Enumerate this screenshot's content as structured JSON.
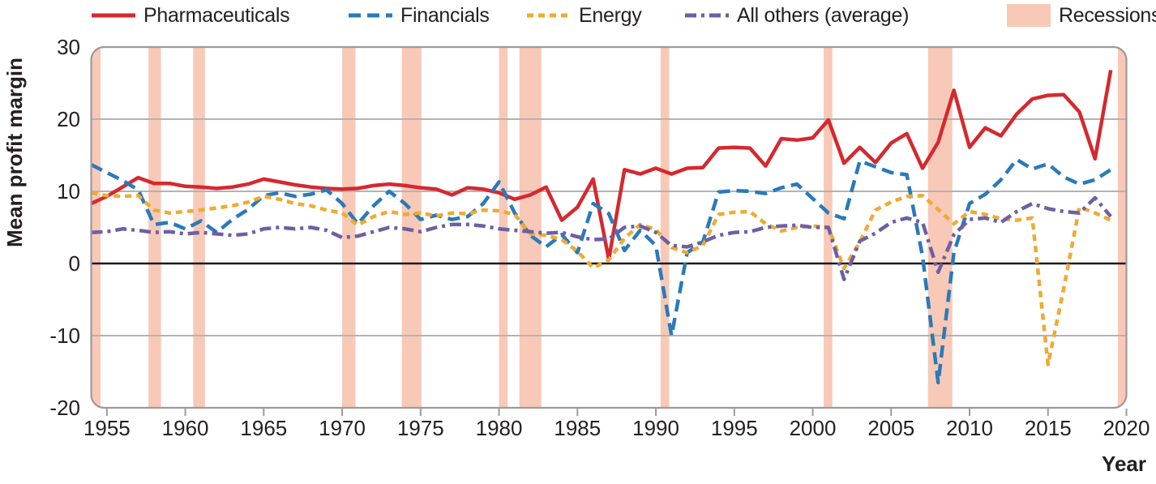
{
  "chart_data": {
    "type": "line",
    "title": "",
    "ylabel": "Mean profit margin",
    "xlabel": "Year",
    "x_range": [
      1954,
      2020
    ],
    "y_range": [
      -20,
      30
    ],
    "x_ticks": [
      1955,
      1960,
      1965,
      1970,
      1975,
      1980,
      1985,
      1990,
      1995,
      2000,
      2005,
      2010,
      2015,
      2020
    ],
    "y_ticks": [
      30,
      20,
      10,
      0,
      -10,
      -20
    ],
    "grid": "horizontal",
    "legend_position": "top",
    "years": [
      1954,
      1955,
      1956,
      1957,
      1958,
      1959,
      1960,
      1961,
      1962,
      1963,
      1964,
      1965,
      1966,
      1967,
      1968,
      1969,
      1970,
      1971,
      1972,
      1973,
      1974,
      1975,
      1976,
      1977,
      1978,
      1979,
      1980,
      1981,
      1982,
      1983,
      1984,
      1985,
      1986,
      1987,
      1988,
      1989,
      1990,
      1991,
      1992,
      1993,
      1994,
      1995,
      1996,
      1997,
      1998,
      1999,
      2000,
      2001,
      2002,
      2003,
      2004,
      2005,
      2006,
      2007,
      2008,
      2009,
      2010,
      2011,
      2012,
      2013,
      2014,
      2015,
      2016,
      2017,
      2018,
      2019
    ],
    "series": [
      {
        "name": "Pharmaceuticals",
        "color": "#d5292f",
        "style": "solid",
        "values": [
          8.3,
          9.3,
          10.6,
          11.9,
          11.1,
          11.1,
          10.7,
          10.6,
          10.4,
          10.6,
          11.0,
          11.7,
          11.3,
          10.9,
          10.6,
          10.4,
          10.3,
          10.4,
          10.8,
          11.0,
          10.8,
          10.5,
          10.3,
          9.5,
          10.5,
          10.3,
          9.8,
          8.9,
          9.5,
          10.6,
          6.0,
          7.8,
          11.7,
          0.6,
          13.0,
          12.4,
          13.2,
          12.4,
          13.2,
          13.3,
          16.0,
          16.1,
          16.0,
          13.5,
          17.3,
          17.1,
          17.4,
          19.9,
          13.9,
          16.1,
          14.0,
          16.7,
          18.0,
          13.2,
          16.8,
          24.0,
          16.1,
          18.8,
          17.7,
          20.7,
          22.8,
          23.3,
          23.4,
          21.0,
          14.5,
          26.8
        ]
      },
      {
        "name": "Financials",
        "color": "#2a7ab9",
        "style": "dashed",
        "values": [
          13.7,
          12.6,
          11.5,
          10.2,
          5.4,
          5.7,
          4.8,
          5.9,
          4.3,
          6.1,
          7.5,
          9.4,
          9.8,
          9.3,
          9.6,
          10.2,
          8.3,
          5.5,
          8.0,
          10.0,
          8.3,
          6.1,
          6.7,
          6.1,
          6.5,
          8.3,
          11.3,
          7.0,
          3.9,
          2.3,
          4.0,
          1.5,
          8.3,
          6.9,
          1.8,
          4.6,
          2.5,
          -10.0,
          1.5,
          3.0,
          9.9,
          10.1,
          10.0,
          9.7,
          10.5,
          11.0,
          9.0,
          7.0,
          6.2,
          14.2,
          13.4,
          12.6,
          12.3,
          1.0,
          -16.5,
          1.5,
          8.3,
          9.6,
          11.6,
          14.4,
          13.1,
          13.8,
          12.0,
          11.0,
          11.6,
          13.0
        ]
      },
      {
        "name": "Energy",
        "color": "#eeab33",
        "style": "short-dash",
        "values": [
          9.8,
          9.4,
          9.3,
          9.4,
          7.4,
          7.0,
          7.2,
          7.4,
          7.7,
          8.0,
          8.5,
          9.3,
          8.9,
          8.3,
          8.0,
          7.4,
          7.0,
          5.3,
          6.5,
          7.2,
          6.8,
          7.0,
          6.6,
          7.0,
          6.9,
          7.4,
          7.3,
          6.8,
          4.1,
          3.9,
          3.3,
          1.7,
          -0.6,
          0.5,
          3.5,
          5.4,
          4.7,
          2.2,
          1.5,
          2.5,
          6.8,
          7.1,
          7.2,
          5.5,
          4.5,
          5.0,
          5.2,
          5.0,
          -0.7,
          3.0,
          7.4,
          8.5,
          9.3,
          9.4,
          7.5,
          5.5,
          7.2,
          6.8,
          6.2,
          6.0,
          6.3,
          -14.0,
          -3.5,
          7.8,
          7.0,
          6.0
        ]
      },
      {
        "name": "All others (average)",
        "color": "#6e5fa5",
        "style": "dash-dot",
        "values": [
          4.3,
          4.4,
          4.8,
          4.6,
          4.3,
          4.4,
          4.1,
          4.3,
          4.1,
          3.9,
          4.1,
          4.8,
          5.0,
          4.8,
          5.0,
          4.6,
          3.6,
          3.8,
          4.4,
          5.0,
          4.8,
          4.4,
          5.0,
          5.4,
          5.4,
          5.2,
          4.8,
          4.6,
          4.4,
          4.2,
          4.3,
          3.7,
          3.3,
          3.4,
          5.0,
          5.2,
          4.3,
          2.5,
          2.3,
          3.0,
          3.9,
          4.3,
          4.4,
          5.0,
          5.2,
          5.3,
          5.0,
          5.0,
          -2.2,
          3.1,
          4.2,
          5.7,
          6.3,
          5.7,
          -1.2,
          4.0,
          6.1,
          6.3,
          5.7,
          7.2,
          8.3,
          7.6,
          7.2,
          7.0,
          9.1,
          6.5
        ]
      }
    ],
    "recessions": {
      "name": "Recessions",
      "color": "#f8c9b7",
      "bands": [
        [
          1954.0,
          1954.6
        ],
        [
          1957.65,
          1958.45
        ],
        [
          1960.5,
          1961.25
        ],
        [
          1970.0,
          1970.85
        ],
        [
          1973.8,
          1975.05
        ],
        [
          1980.0,
          1980.55
        ],
        [
          1981.3,
          1982.7
        ],
        [
          1990.3,
          1990.85
        ],
        [
          2000.7,
          2001.25
        ],
        [
          2007.35,
          2008.9
        ],
        [
          2019.45,
          2020.0
        ]
      ]
    },
    "axis_colors": {
      "zero_line": "#1a1a1a",
      "gridline": "#b3b3b3",
      "frame": "#9b9b9b",
      "text": "#231f20"
    }
  }
}
